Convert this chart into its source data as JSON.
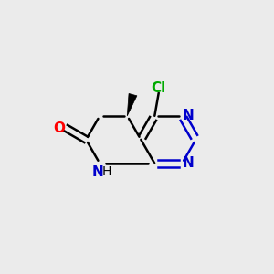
{
  "background_color": "#ebebeb",
  "atom_colors": {
    "N": "#0000cc",
    "O": "#ff0000",
    "Cl": "#00aa00",
    "C": "#000000"
  },
  "font_size": 11,
  "line_width": 1.8
}
